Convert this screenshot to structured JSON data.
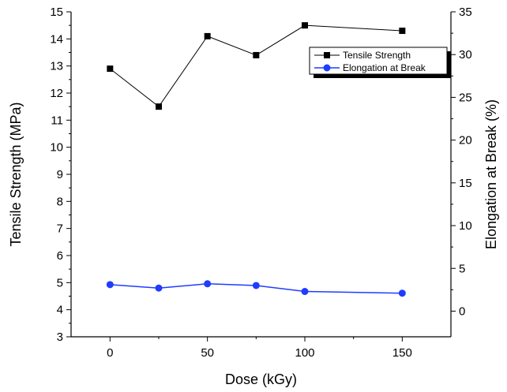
{
  "chart_data": {
    "type": "line",
    "x": [
      0,
      25,
      50,
      75,
      100,
      150
    ],
    "xlabel": "Dose (kGy)",
    "ylabel": "Tensile Strength (MPa)",
    "y2label": "Elongation at Break (%)",
    "xlim": [
      -20,
      175
    ],
    "ylim": [
      3,
      15
    ],
    "y2lim": [
      -3.0,
      35
    ],
    "xticks": [
      0,
      50,
      100,
      150
    ],
    "yticks": [
      3,
      4,
      5,
      6,
      7,
      8,
      9,
      10,
      11,
      12,
      13,
      14,
      15
    ],
    "y2ticks": [
      0,
      5,
      10,
      15,
      20,
      25,
      30,
      35
    ],
    "grid": false,
    "legend_position": "top-right",
    "series": [
      {
        "name": "Tensile Strength",
        "axis": "left",
        "marker": "square",
        "color": "#000000",
        "values": [
          12.9,
          11.5,
          14.1,
          13.4,
          14.5,
          14.3
        ]
      },
      {
        "name": "Elongation at Break",
        "axis": "right",
        "marker": "circle",
        "color": "#1f3cff",
        "values": [
          3.1,
          2.7,
          3.2,
          3.0,
          2.3,
          2.1
        ]
      }
    ]
  }
}
